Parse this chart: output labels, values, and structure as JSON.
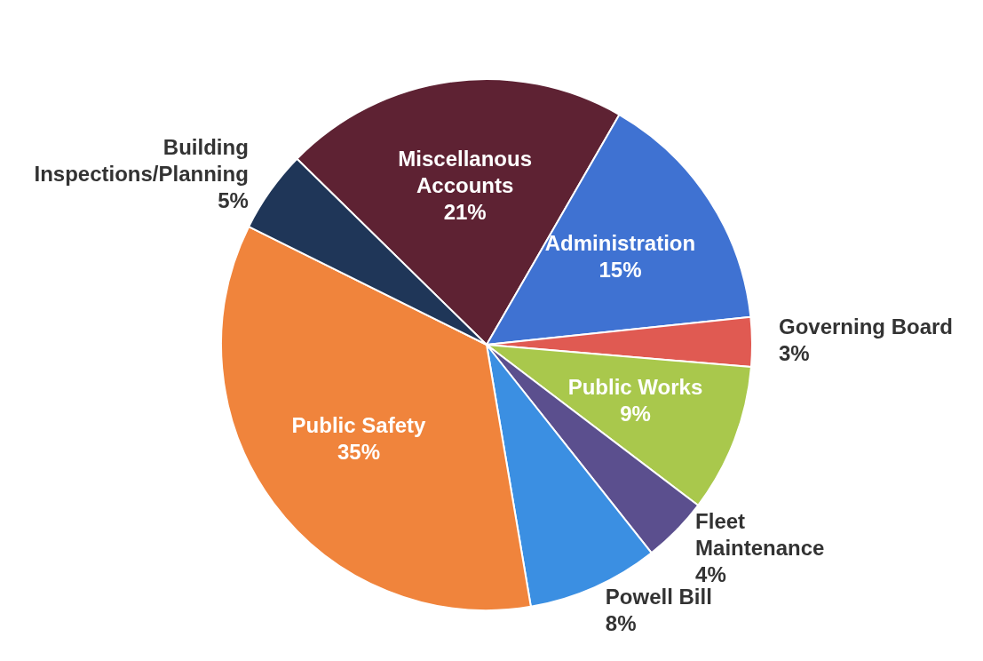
{
  "chart_data": {
    "type": "pie",
    "categories": [
      "Miscellanous Accounts",
      "Administration",
      "Governing Board",
      "Public Works",
      "Fleet Maintenance",
      "Powell Bill",
      "Public Safety",
      "Building Inspections/Planning"
    ],
    "values": [
      21,
      15,
      3,
      9,
      4,
      8,
      35,
      5
    ],
    "colors": [
      "#5e2233",
      "#3f72d2",
      "#e05a52",
      "#a9c84c",
      "#5b4f8e",
      "#3b8fe2",
      "#f0843c",
      "#1f3658"
    ],
    "value_labels": [
      "21%",
      "15%",
      "3%",
      "9%",
      "4%",
      "8%",
      "35%",
      "5%"
    ],
    "legend": false
  }
}
